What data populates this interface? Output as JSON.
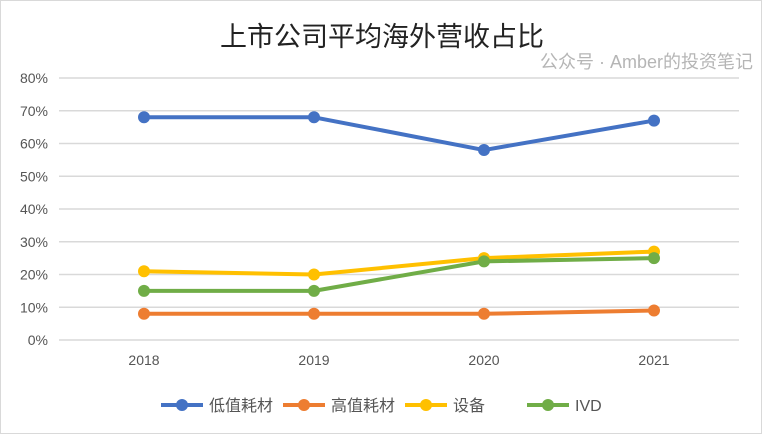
{
  "chart_data": {
    "type": "line",
    "title": "上市公司平均海外营收占比",
    "categories": [
      "2018",
      "2019",
      "2020",
      "2021"
    ],
    "series": [
      {
        "name": "低值耗材",
        "color": "#4472c4",
        "values": [
          68,
          68,
          58,
          67
        ]
      },
      {
        "name": "高值耗材",
        "color": "#ed7d31",
        "values": [
          8,
          8,
          8,
          9
        ]
      },
      {
        "name": "设备",
        "color": "#ffc000",
        "values": [
          21,
          20,
          25,
          27
        ]
      },
      {
        "name": "IVD",
        "color": "#70ad47",
        "values": [
          15,
          15,
          24,
          25
        ]
      }
    ],
    "ylim": [
      0,
      80
    ],
    "yticks": [
      "0%",
      "10%",
      "20%",
      "30%",
      "40%",
      "50%",
      "60%",
      "70%",
      "80%"
    ],
    "grid": true,
    "legend": "bottom"
  },
  "watermark": "公众号 · Amber的投资笔记"
}
